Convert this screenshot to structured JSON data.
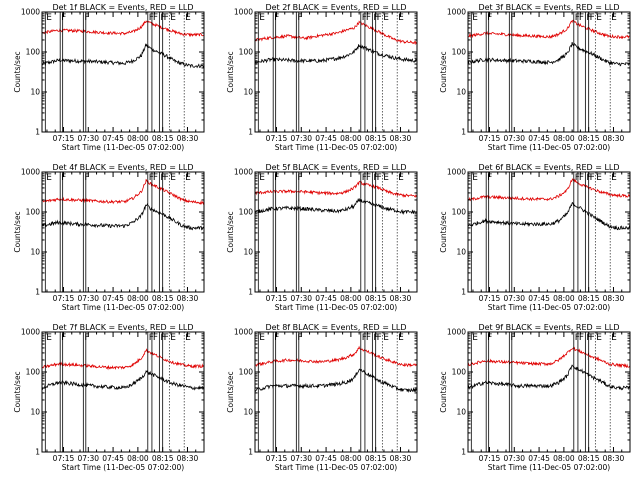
{
  "chart_data": {
    "type": "line",
    "layout": {
      "columns": 3,
      "rows": 3
    },
    "shared": {
      "xlabel": "Start Time (11-Dec-05 07:02:00)",
      "ylabel": "Counts/sec",
      "x_ticks": [
        "07:15",
        "07:30",
        "07:45",
        "08:00",
        "08:15",
        "08:30"
      ],
      "x_range_minutes": [
        0,
        98
      ],
      "y_scale": "log",
      "ylim": [
        1,
        1000
      ],
      "y_ticks": [
        "1",
        "10",
        "100",
        "1000"
      ],
      "markers": [
        {
          "label": "E",
          "minute": 2,
          "style": "solid"
        },
        {
          "label": "F",
          "minute": 11,
          "style": "solid"
        },
        {
          "label": "F",
          "minute": 12.5,
          "style": "solid"
        },
        {
          "label": "F",
          "minute": 25,
          "style": "solid"
        },
        {
          "label": "F",
          "minute": 26.5,
          "style": "solid"
        },
        {
          "label": "F",
          "minute": 64,
          "style": "solid"
        },
        {
          "label": "F",
          "minute": 66.5,
          "style": "solid"
        },
        {
          "label": "F",
          "minute": 71,
          "style": "solid"
        },
        {
          "label": "F",
          "minute": 73,
          "style": "solid"
        },
        {
          "label": "E",
          "minute": 77,
          "style": "dotted"
        },
        {
          "label": "E",
          "minute": 86,
          "style": "dotted"
        }
      ]
    },
    "time_minutes": [
      0,
      10,
      20,
      30,
      40,
      50,
      55,
      60,
      63,
      66,
      70,
      75,
      80,
      85,
      90,
      98
    ],
    "panels": [
      {
        "title": "Det 1f BLACK = Events, RED = LLD",
        "series": [
          {
            "name": "Events",
            "color": "#000000",
            "values": [
              50,
              62,
              60,
              58,
              55,
              52,
              60,
              80,
              150,
              120,
              100,
              80,
              60,
              50,
              45,
              45
            ]
          },
          {
            "name": "LLD",
            "color": "#e00000",
            "values": [
              300,
              350,
              340,
              320,
              300,
              290,
              320,
              420,
              600,
              520,
              450,
              380,
              320,
              280,
              270,
              270
            ]
          }
        ]
      },
      {
        "title": "Det 2f BLACK = Events, RED = LLD",
        "series": [
          {
            "name": "Events",
            "color": "#000000",
            "values": [
              55,
              65,
              62,
              60,
              60,
              70,
              80,
              100,
              150,
              130,
              110,
              90,
              80,
              70,
              65,
              60
            ]
          },
          {
            "name": "LLD",
            "color": "#e00000",
            "values": [
              200,
              230,
              250,
              220,
              260,
              300,
              350,
              400,
              550,
              480,
              400,
              320,
              250,
              200,
              180,
              170
            ]
          }
        ]
      },
      {
        "title": "Det 3f BLACK = Events, RED = LLD",
        "series": [
          {
            "name": "Events",
            "color": "#000000",
            "values": [
              55,
              65,
              62,
              60,
              58,
              55,
              65,
              90,
              160,
              130,
              110,
              90,
              70,
              55,
              50,
              50
            ]
          },
          {
            "name": "LLD",
            "color": "#e00000",
            "values": [
              250,
              290,
              280,
              260,
              250,
              240,
              280,
              380,
              600,
              500,
              420,
              350,
              290,
              250,
              240,
              240
            ]
          }
        ]
      },
      {
        "title": "Det 4f BLACK = Events, RED = LLD",
        "series": [
          {
            "name": "Events",
            "color": "#000000",
            "values": [
              45,
              55,
              50,
              48,
              45,
              45,
              55,
              80,
              150,
              120,
              100,
              80,
              60,
              45,
              40,
              40
            ]
          },
          {
            "name": "LLD",
            "color": "#e00000",
            "values": [
              180,
              210,
              200,
              190,
              180,
              180,
              220,
              320,
              600,
              500,
              420,
              330,
              260,
              200,
              180,
              170
            ]
          }
        ]
      },
      {
        "title": "Det 5f BLACK = Events, RED = LLD",
        "series": [
          {
            "name": "Events",
            "color": "#000000",
            "values": [
              100,
              120,
              125,
              120,
              110,
              105,
              115,
              140,
              200,
              180,
              160,
              140,
              120,
              110,
              100,
              100
            ]
          },
          {
            "name": "LLD",
            "color": "#e00000",
            "values": [
              300,
              320,
              330,
              320,
              300,
              290,
              320,
              400,
              550,
              500,
              450,
              400,
              320,
              280,
              260,
              250
            ]
          }
        ]
      },
      {
        "title": "Det 6f BLACK = Events, RED = LLD",
        "series": [
          {
            "name": "Events",
            "color": "#000000",
            "values": [
              45,
              60,
              55,
              50,
              50,
              50,
              60,
              90,
              160,
              140,
              110,
              80,
              60,
              45,
              40,
              40
            ]
          },
          {
            "name": "LLD",
            "color": "#e00000",
            "values": [
              200,
              240,
              230,
              220,
              210,
              210,
              250,
              350,
              650,
              550,
              450,
              380,
              320,
              280,
              260,
              250
            ]
          }
        ]
      },
      {
        "title": "Det 7f BLACK = Events, RED = LLD",
        "series": [
          {
            "name": "Events",
            "color": "#000000",
            "values": [
              40,
              55,
              50,
              45,
              42,
              40,
              50,
              70,
              100,
              90,
              75,
              60,
              50,
              45,
              40,
              40
            ]
          },
          {
            "name": "LLD",
            "color": "#e00000",
            "values": [
              130,
              160,
              150,
              140,
              130,
              130,
              150,
              220,
              350,
              300,
              250,
              200,
              170,
              150,
              140,
              140
            ]
          }
        ]
      },
      {
        "title": "Det 8f BLACK = Events, RED = LLD",
        "series": [
          {
            "name": "Events",
            "color": "#000000",
            "values": [
              35,
              45,
              45,
              45,
              45,
              50,
              55,
              70,
              120,
              100,
              80,
              60,
              50,
              40,
              35,
              35
            ]
          },
          {
            "name": "LLD",
            "color": "#e00000",
            "values": [
              150,
              180,
              200,
              190,
              180,
              200,
              230,
              280,
              400,
              350,
              300,
              240,
              200,
              170,
              150,
              150
            ]
          }
        ]
      },
      {
        "title": "Det 9f BLACK = Events, RED = LLD",
        "series": [
          {
            "name": "Events",
            "color": "#000000",
            "values": [
              40,
              55,
              50,
              45,
              45,
              45,
              55,
              80,
              150,
              120,
              100,
              75,
              60,
              45,
              40,
              40
            ]
          },
          {
            "name": "LLD",
            "color": "#e00000",
            "values": [
              150,
              190,
              180,
              170,
              160,
              160,
              200,
              300,
              400,
              350,
              300,
              240,
              200,
              160,
              150,
              140
            ]
          }
        ]
      }
    ]
  }
}
